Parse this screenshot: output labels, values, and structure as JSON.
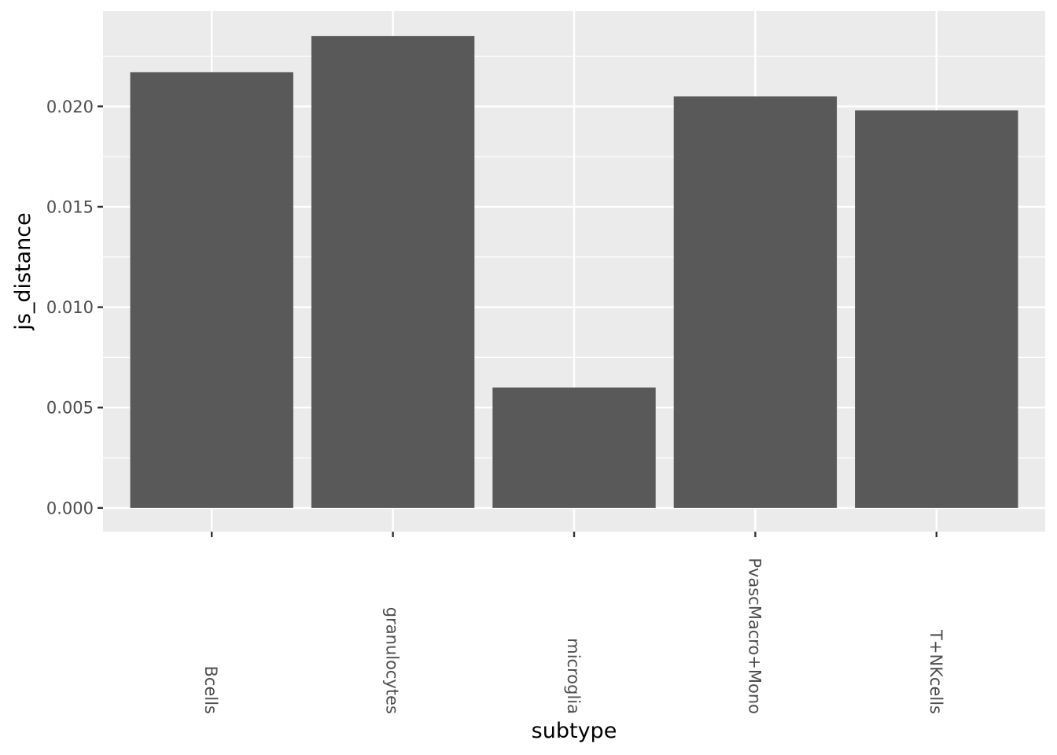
{
  "chart_data": {
    "type": "bar",
    "title": "",
    "xlabel": "subtype",
    "ylabel": "js_distance",
    "categories": [
      "Bcells",
      "granulocytes",
      "microglia",
      "PvascMacro+Mono",
      "T+NKcells"
    ],
    "values": [
      0.0217,
      0.0235,
      0.006,
      0.0205,
      0.0198
    ],
    "ylim": [
      -0.00118,
      0.02475
    ],
    "yticks": [
      0.0,
      0.005,
      0.01,
      0.015,
      0.02
    ],
    "ytick_labels": [
      "0.000",
      "0.005",
      "0.010",
      "0.015",
      "0.020"
    ],
    "grid": true,
    "legend": "none",
    "colors": {
      "panel_background": "#ebebeb",
      "grid": "#ffffff",
      "bar_fill": "#595959",
      "tick": "#333333",
      "tick_label": "#4d4d4d",
      "axis_title": "#000000"
    }
  }
}
